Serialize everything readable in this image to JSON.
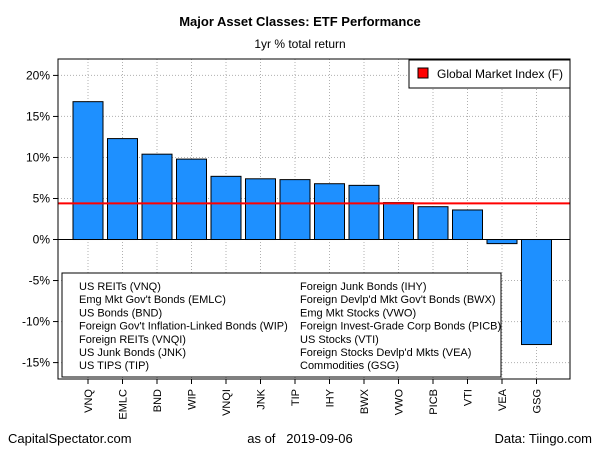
{
  "chart_data": {
    "type": "bar",
    "title": "Major Asset Classes: ETF Performance",
    "subtitle": "1yr % total return",
    "categories": [
      "VNQ",
      "EMLC",
      "BND",
      "WIP",
      "VNQI",
      "JNK",
      "TIP",
      "IHY",
      "BWX",
      "VWO",
      "PICB",
      "VTI",
      "VEA",
      "GSG"
    ],
    "values": [
      16.8,
      12.3,
      10.4,
      9.8,
      7.7,
      7.4,
      7.3,
      6.8,
      6.6,
      4.5,
      4.0,
      3.6,
      -0.5,
      -12.8
    ],
    "ylim": [
      -17,
      22
    ],
    "yticks": [
      -15,
      -10,
      -5,
      0,
      5,
      10,
      15,
      20
    ],
    "ytick_labels": [
      "-15%",
      "-10%",
      "-5%",
      "0%",
      "5%",
      "10%",
      "15%",
      "20%"
    ],
    "bar_color": "#1E90FF",
    "reference_line": {
      "name": "Global Market Index (F)",
      "value": 4.4,
      "color": "#FF0000"
    },
    "legend": {
      "position": "top-right",
      "entries": [
        "Global Market Index (F)"
      ]
    },
    "grid": true,
    "key_left": [
      "US REITs (VNQ)",
      "Emg Mkt Gov't Bonds (EMLC)",
      "US Bonds (BND)",
      "Foreign Gov't Inflation-Linked Bonds (WIP)",
      "Foreign REITs (VNQI)",
      "US Junk Bonds (JNK)",
      "US TIPS (TIP)"
    ],
    "key_right": [
      "Foreign Junk Bonds (IHY)",
      "Foreign Devlp'd Mkt Gov't Bonds (BWX)",
      "Emg Mkt Stocks (VWO)",
      "Foreign Invest-Grade Corp Bonds (PICB)",
      "US Stocks (VTI)",
      "Foreign Stocks Devlp'd Mkts (VEA)",
      "Commodities (GSG)"
    ]
  },
  "footer": {
    "left": "CapitalSpectator.com",
    "as_of_label": "as of",
    "date": "2019-09-06",
    "right": "Data: Tiingo.com"
  }
}
